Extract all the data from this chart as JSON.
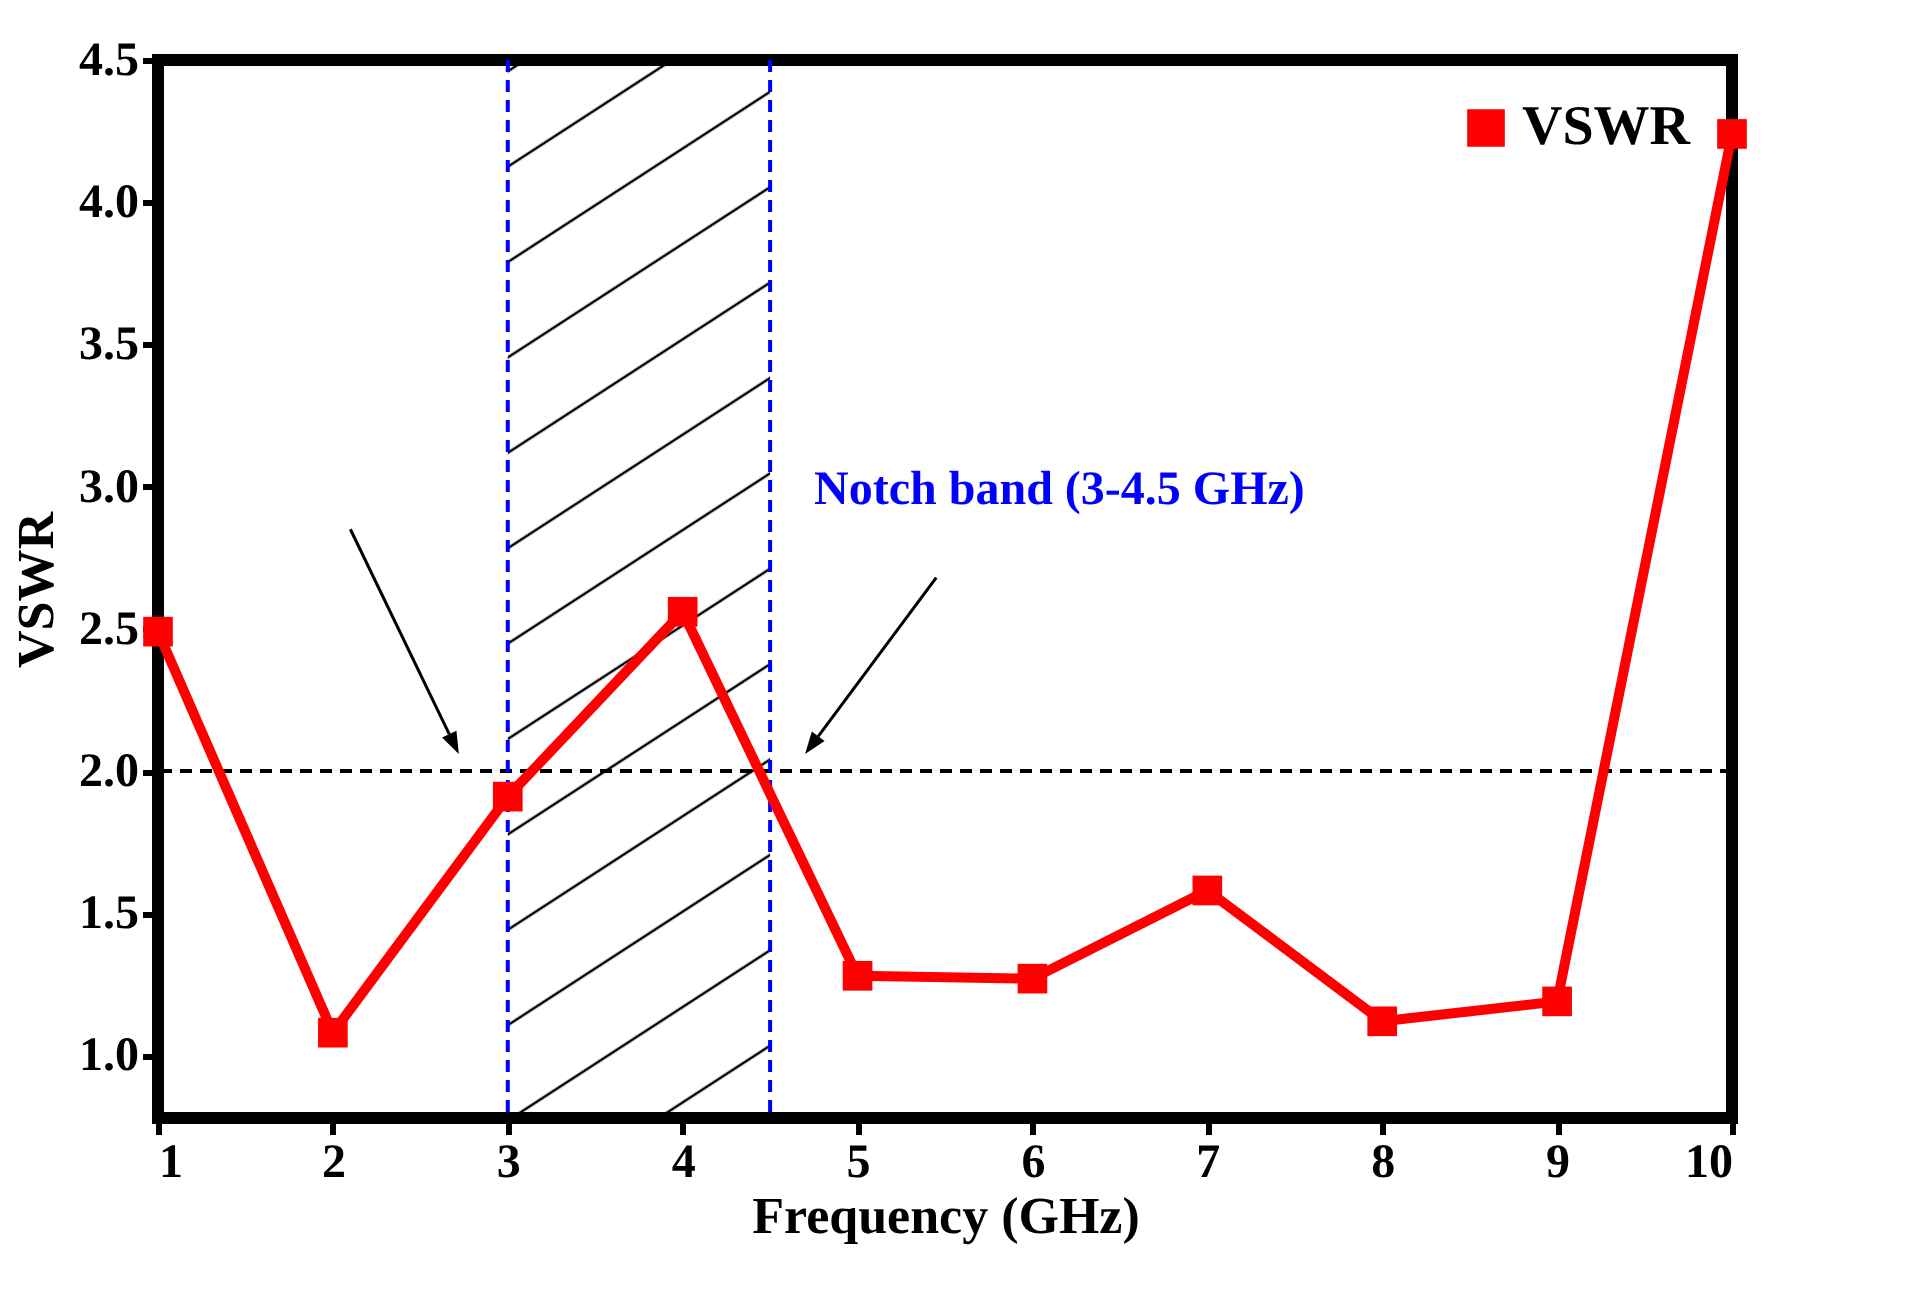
{
  "chart_data": {
    "type": "line",
    "xlabel": "Frequency (GHz)",
    "ylabel": "VSWR",
    "x": [
      1,
      2,
      3,
      4,
      5,
      6,
      7,
      8,
      9,
      10
    ],
    "series": [
      {
        "name": "VSWR",
        "color": "#ff0000",
        "values": [
          2.49,
          1.08,
          1.91,
          2.56,
          1.28,
          1.27,
          1.58,
          1.12,
          1.19,
          4.24
        ]
      }
    ],
    "xlim": [
      1,
      10
    ],
    "xticks": [
      1,
      2,
      3,
      4,
      5,
      6,
      7,
      8,
      9,
      10
    ],
    "ylim": [
      0.78,
      4.5
    ],
    "yticks": [
      {
        "value": 1,
        "label": "1.0"
      },
      1.5,
      {
        "value": 2,
        "label": "2.0"
      },
      2.5,
      {
        "value": 3,
        "label": "3.0"
      },
      3.5,
      {
        "value": 4,
        "label": "4.0"
      },
      4.5
    ],
    "ref_lines": [
      {
        "axis": "y",
        "value": 2,
        "color": "#000000",
        "line_style": "dashed"
      },
      {
        "axis": "x",
        "value": 3,
        "color": "#0000ff",
        "line_style": "dashed"
      },
      {
        "axis": "x",
        "value": 4.5,
        "color": "#0000ff",
        "line_style": "dashed"
      }
    ],
    "bands": [
      {
        "axis": "x",
        "from": 3,
        "to": 4.5,
        "label": "Notch band (3-4.5 GHz)",
        "color": "#0000ff"
      }
    ],
    "legend": "top right",
    "marker": "square",
    "line_style": "solid",
    "grid": false
  }
}
